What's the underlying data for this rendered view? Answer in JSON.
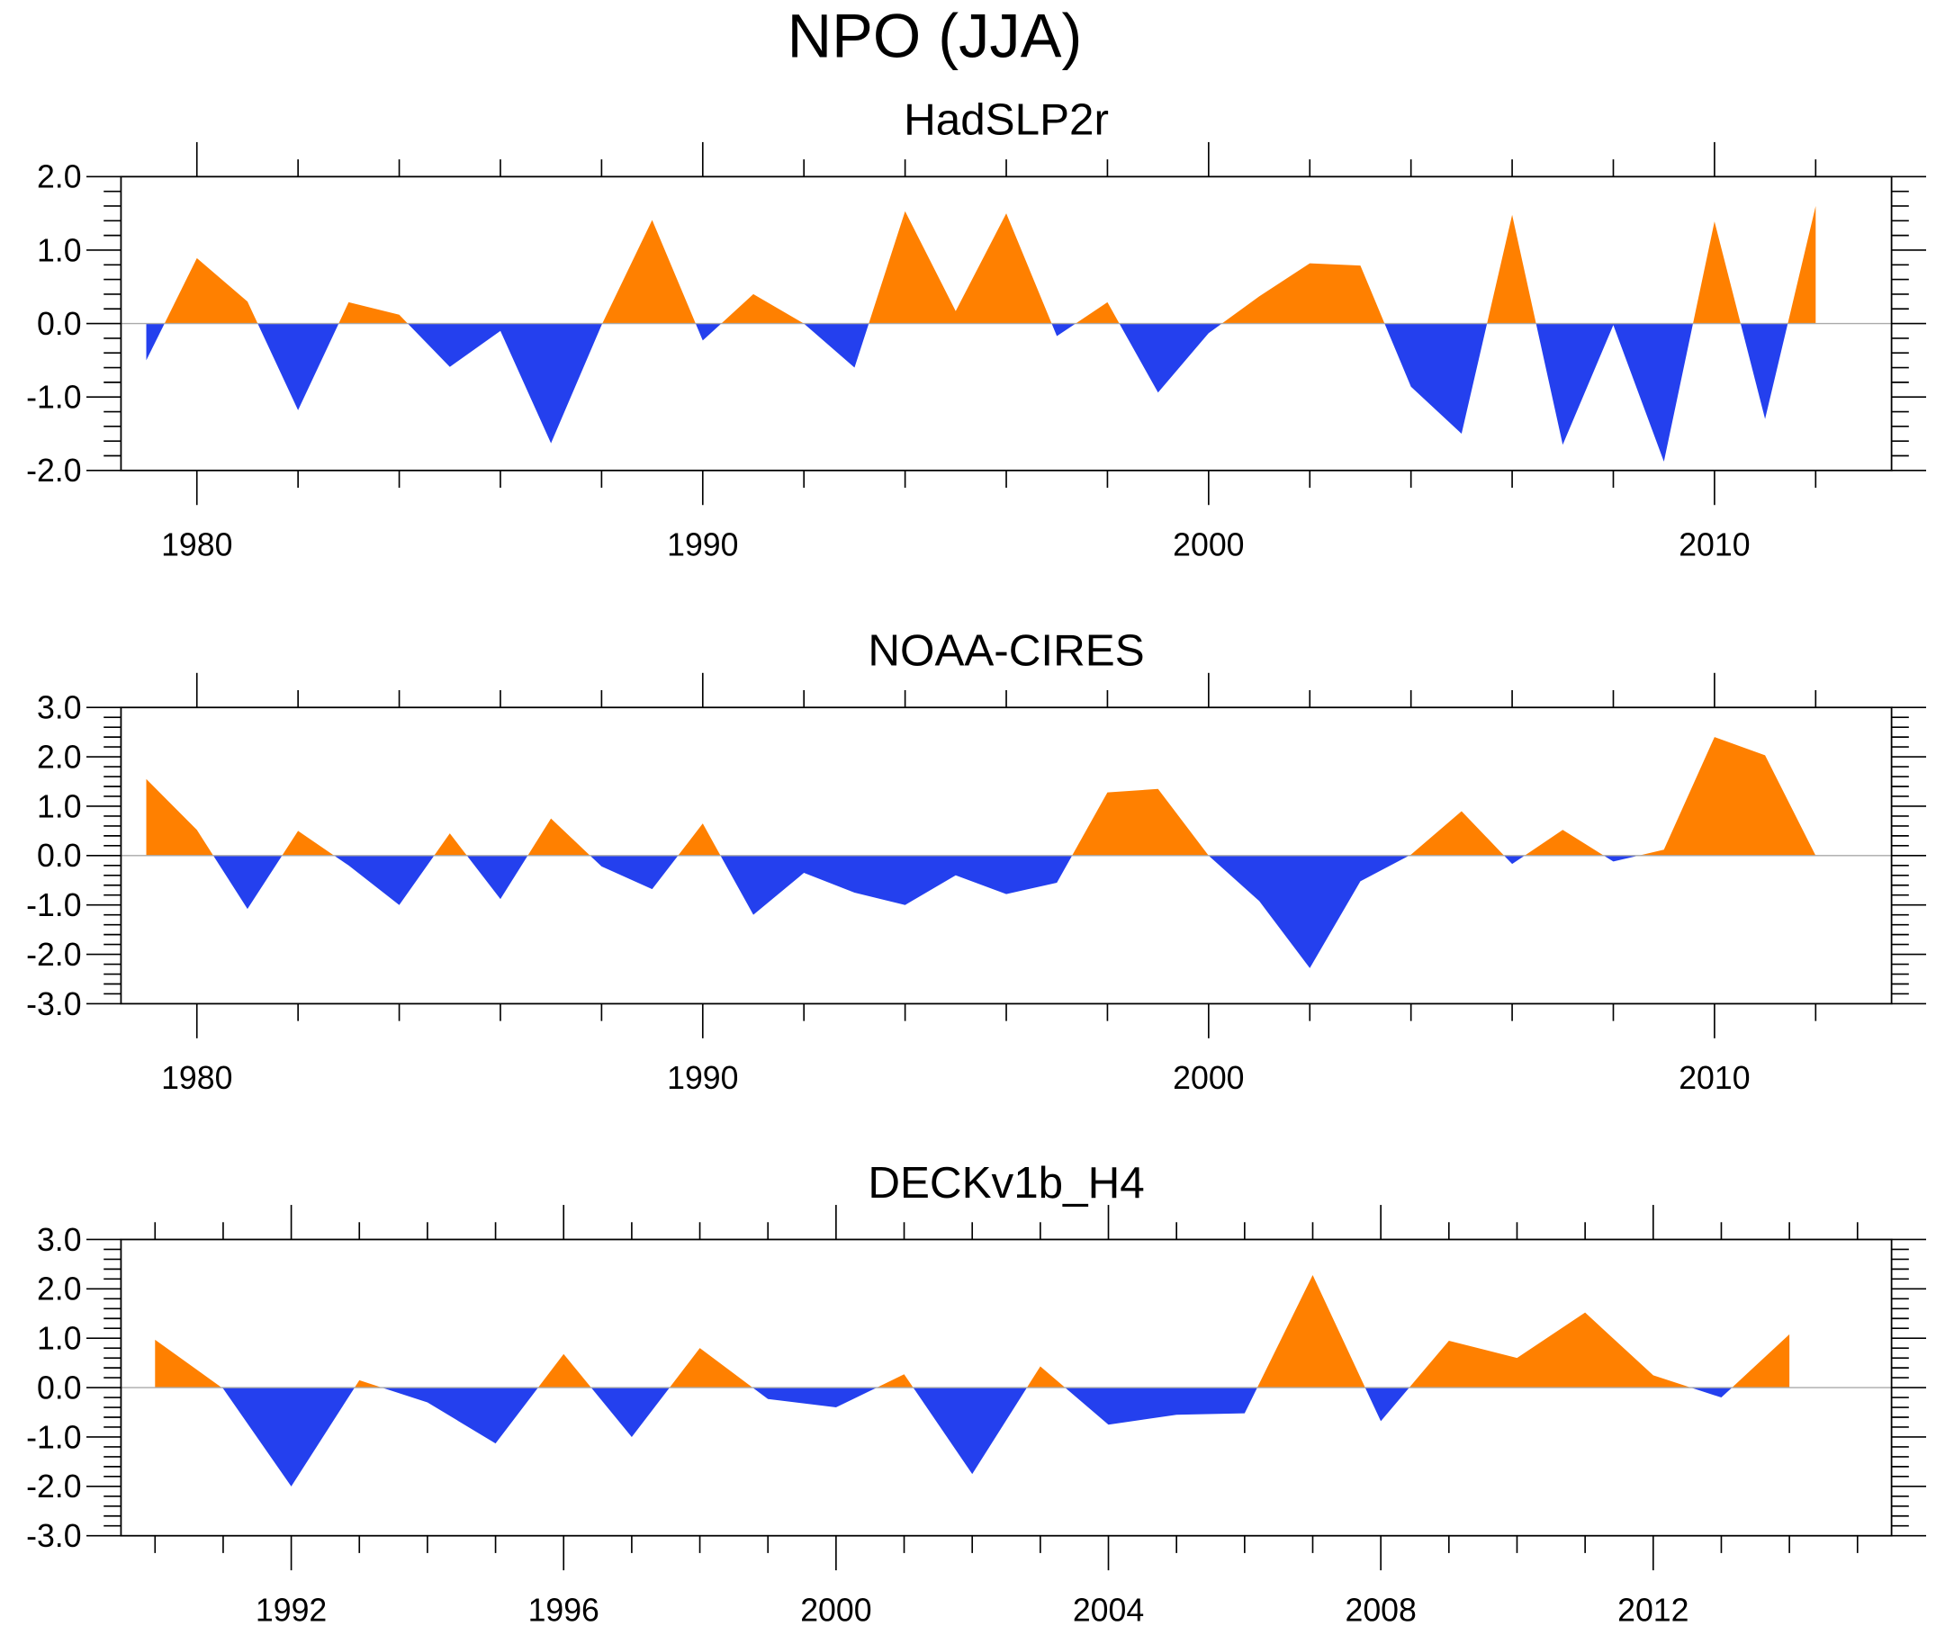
{
  "title": "NPO (JJA)",
  "colors": {
    "positive": "#FF8000",
    "negative": "#2440EE",
    "zero_line": "#AAAAAA",
    "axis": "#000000"
  },
  "chart_data": [
    {
      "type": "area",
      "title": "HadSLP2r",
      "xlabel": "",
      "ylabel": "",
      "xlim": [
        1978.5,
        2013.5
      ],
      "ylim": [
        -2.0,
        2.0
      ],
      "yticks": [
        -2.0,
        -1.0,
        0.0,
        1.0,
        2.0
      ],
      "ytick_labels": [
        "-2.0",
        "-1.0",
        "0.0",
        "1.0",
        "2.0"
      ],
      "yminor_step": 0.2,
      "xticks": [
        1980,
        1990,
        2000,
        2010
      ],
      "xtick_labels": [
        "1980",
        "1990",
        "2000",
        "2010"
      ],
      "xmajor_step": 10,
      "xminor_step": 2,
      "x": [
        1979,
        1980,
        1981,
        1982,
        1983,
        1984,
        1985,
        1986,
        1987,
        1988,
        1989,
        1990,
        1991,
        1992,
        1993,
        1994,
        1995,
        1996,
        1997,
        1998,
        1999,
        2000,
        2001,
        2002,
        2003,
        2004,
        2005,
        2006,
        2007,
        2008,
        2009,
        2010,
        2011,
        2012
      ],
      "values": [
        -0.5,
        0.89,
        0.3,
        -1.18,
        0.29,
        0.12,
        -0.59,
        -0.1,
        -1.63,
        -0.02,
        1.41,
        -0.23,
        0.4,
        0.0,
        -0.6,
        1.53,
        0.17,
        1.5,
        -0.17,
        0.29,
        -0.94,
        -0.13,
        0.37,
        0.82,
        0.79,
        -0.86,
        -1.5,
        1.48,
        -1.65,
        -0.02,
        -1.88,
        1.39,
        -1.3,
        1.6
      ]
    },
    {
      "type": "area",
      "title": "NOAA-CIRES",
      "xlabel": "",
      "ylabel": "",
      "xlim": [
        1978.5,
        2013.5
      ],
      "ylim": [
        -3.0,
        3.0
      ],
      "yticks": [
        -3.0,
        -2.0,
        -1.0,
        0.0,
        1.0,
        2.0,
        3.0
      ],
      "ytick_labels": [
        "-3.0",
        "-2.0",
        "-1.0",
        "0.0",
        "1.0",
        "2.0",
        "3.0"
      ],
      "yminor_step": 0.2,
      "xticks": [
        1980,
        1990,
        2000,
        2010
      ],
      "xtick_labels": [
        "1980",
        "1990",
        "2000",
        "2010"
      ],
      "xmajor_step": 10,
      "xminor_step": 2,
      "x": [
        1979,
        1980,
        1981,
        1982,
        1983,
        1984,
        1985,
        1986,
        1987,
        1988,
        1989,
        1990,
        1991,
        1992,
        1993,
        1994,
        1995,
        1996,
        1997,
        1998,
        1999,
        2000,
        2001,
        2002,
        2003,
        2004,
        2005,
        2006,
        2007,
        2008,
        2009,
        2010,
        2011,
        2012
      ],
      "values": [
        1.55,
        0.52,
        -1.08,
        0.5,
        -0.2,
        -1.0,
        0.45,
        -0.88,
        0.75,
        -0.22,
        -0.68,
        0.65,
        -1.2,
        -0.35,
        -0.75,
        -1.0,
        -0.4,
        -0.78,
        -0.55,
        1.28,
        1.35,
        0.0,
        -0.92,
        -2.28,
        -0.52,
        0.02,
        0.9,
        -0.17,
        0.52,
        -0.12,
        0.12,
        2.4,
        2.03,
        0.0
      ]
    },
    {
      "type": "area",
      "title": "DECKv1b_H4",
      "xlabel": "",
      "ylabel": "",
      "xlim": [
        1989.5,
        2015.5
      ],
      "ylim": [
        -3.0,
        3.0
      ],
      "yticks": [
        -3.0,
        -2.0,
        -1.0,
        0.0,
        1.0,
        2.0,
        3.0
      ],
      "ytick_labels": [
        "-3.0",
        "-2.0",
        "-1.0",
        "0.0",
        "1.0",
        "2.0",
        "3.0"
      ],
      "yminor_step": 0.2,
      "xticks": [
        1992,
        1996,
        2000,
        2004,
        2008,
        2012
      ],
      "xtick_labels": [
        "1992",
        "1996",
        "2000",
        "2004",
        "2008",
        "2012"
      ],
      "xmajor_step": 4,
      "xminor_step": 1,
      "x": [
        1990,
        1991,
        1992,
        1993,
        1994,
        1995,
        1996,
        1997,
        1998,
        1999,
        2000,
        2001,
        2002,
        2003,
        2004,
        2005,
        2006,
        2007,
        2008,
        2009,
        2010,
        2011,
        2012,
        2013,
        2014
      ],
      "values": [
        0.97,
        -0.02,
        -2.0,
        0.15,
        -0.3,
        -1.13,
        0.68,
        -1.0,
        0.8,
        -0.23,
        -0.4,
        0.27,
        -1.75,
        0.43,
        -0.75,
        -0.55,
        -0.52,
        2.28,
        -0.68,
        0.95,
        0.6,
        1.52,
        0.25,
        -0.2,
        1.08
      ]
    }
  ]
}
